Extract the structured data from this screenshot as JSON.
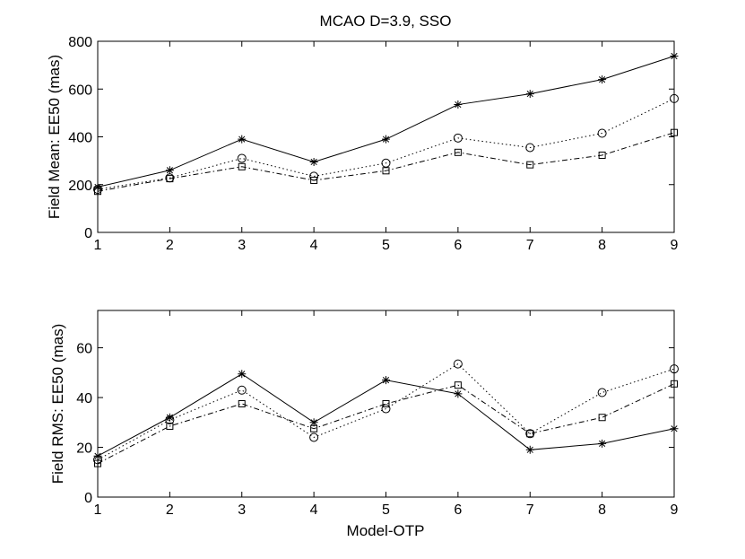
{
  "figure": {
    "title": "MCAO D=3.9, SSO",
    "xlabel": "Model-OTP"
  },
  "chart_data": [
    {
      "type": "line",
      "title": "MCAO D=3.9, SSO",
      "xlabel": "",
      "ylabel": "Field Mean: EE50 (mas)",
      "x": [
        1,
        2,
        3,
        4,
        5,
        6,
        7,
        8,
        9
      ],
      "xlim": [
        1,
        9
      ],
      "ylim": [
        0,
        800
      ],
      "xticks": [
        1,
        2,
        3,
        4,
        5,
        6,
        7,
        8,
        9
      ],
      "yticks": [
        0,
        200,
        400,
        600,
        800
      ],
      "grid": false,
      "series": [
        {
          "name": "solid-star",
          "line": "solid",
          "marker": "star",
          "values": [
            190,
            260,
            390,
            295,
            390,
            535,
            580,
            640,
            738
          ]
        },
        {
          "name": "dotted-circle",
          "line": "dotted",
          "marker": "circle",
          "values": [
            180,
            228,
            310,
            235,
            290,
            395,
            355,
            415,
            560
          ]
        },
        {
          "name": "dashdot-square",
          "line": "dashdot",
          "marker": "square",
          "values": [
            172,
            225,
            275,
            218,
            258,
            335,
            283,
            323,
            418
          ]
        }
      ]
    },
    {
      "type": "line",
      "title": "",
      "xlabel": "Model-OTP",
      "ylabel": "Field RMS: EE50 (mas)",
      "x": [
        1,
        2,
        3,
        4,
        5,
        6,
        7,
        8,
        9
      ],
      "xlim": [
        1,
        9
      ],
      "ylim": [
        0,
        75
      ],
      "xticks": [
        1,
        2,
        3,
        4,
        5,
        6,
        7,
        8,
        9
      ],
      "yticks": [
        0,
        20,
        40,
        60
      ],
      "grid": false,
      "series": [
        {
          "name": "solid-star",
          "line": "solid",
          "marker": "star",
          "values": [
            16.5,
            32,
            49.5,
            30,
            47,
            41.5,
            19,
            21.5,
            27.5
          ]
        },
        {
          "name": "dotted-circle",
          "line": "dotted",
          "marker": "circle",
          "values": [
            15,
            31,
            43,
            24,
            35.5,
            53.5,
            25.5,
            42,
            51.5
          ]
        },
        {
          "name": "dashdot-square",
          "line": "dashdot",
          "marker": "square",
          "values": [
            13.5,
            28.5,
            37.5,
            27.5,
            37.5,
            45,
            25.5,
            32,
            45.5
          ]
        }
      ]
    }
  ]
}
